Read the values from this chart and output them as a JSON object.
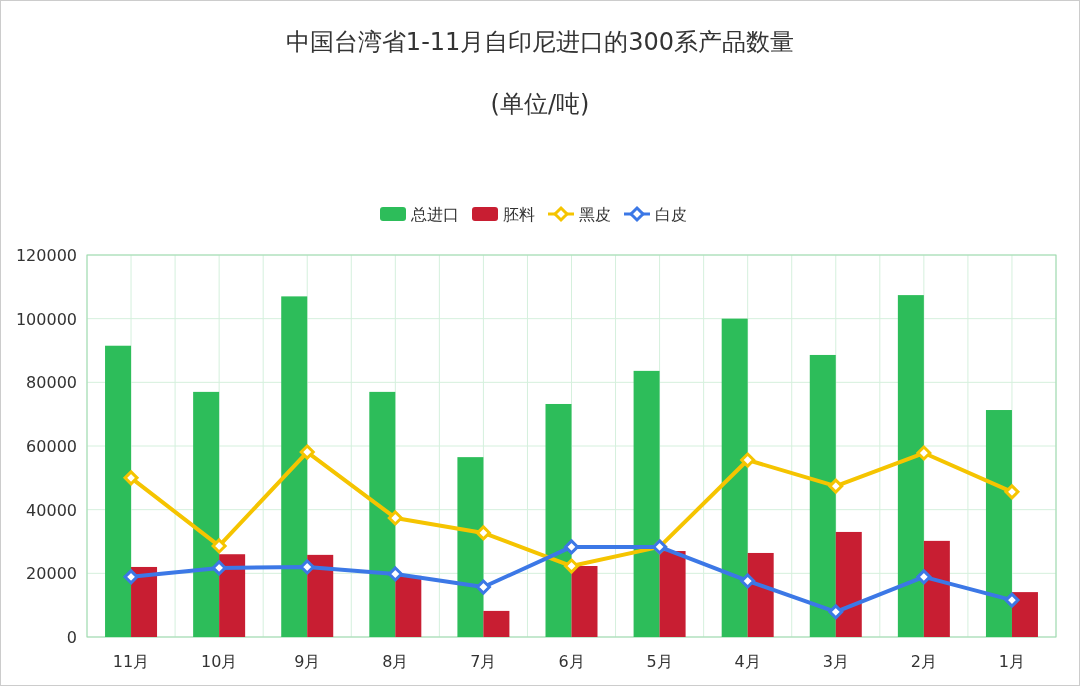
{
  "chart_data": {
    "type": "bar",
    "title": "中国台湾省1-11月自印尼进口的300系产品数量",
    "subtitle": "(单位/吨)",
    "categories": [
      "11月",
      "10月",
      "9月",
      "8月",
      "7月",
      "6月",
      "5月",
      "4月",
      "3月",
      "2月",
      "1月"
    ],
    "series": [
      {
        "name": "总进口",
        "color": "#2dbd5a",
        "values": [
          91500,
          77000,
          107000,
          77000,
          56500,
          73200,
          83600,
          100000,
          88600,
          107400,
          71300
        ]
      },
      {
        "name": "胚料",
        "color": "#c81e32",
        "values": [
          22000,
          26000,
          25800,
          19200,
          8200,
          22300,
          27000,
          26400,
          33000,
          30200,
          14100
        ]
      },
      {
        "name": "黑皮",
        "type": "line",
        "color": "#f5c400",
        "values": [
          50000,
          28600,
          58100,
          37400,
          32700,
          22300,
          28300,
          55600,
          47400,
          57800,
          45600
        ]
      },
      {
        "name": "白皮",
        "type": "line",
        "color": "#3c78e6",
        "values": [
          18900,
          21700,
          22000,
          19800,
          15700,
          28300,
          28300,
          17600,
          7900,
          18900,
          11600
        ]
      }
    ],
    "ylim": [
      0,
      120000
    ],
    "yticks": [
      0,
      20000,
      40000,
      60000,
      80000,
      100000,
      120000
    ],
    "grid": true,
    "legend": "top",
    "marker": "diamond"
  }
}
